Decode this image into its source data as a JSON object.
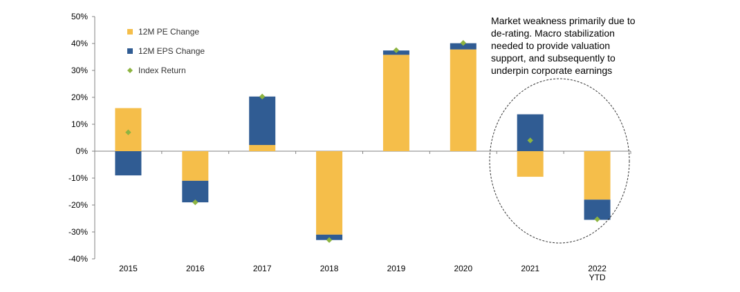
{
  "chart_data": {
    "type": "bar",
    "stacked": true,
    "categories": [
      "2015",
      "2016",
      "2017",
      "2018",
      "2019",
      "2020",
      "2021",
      "2022\nYTD"
    ],
    "series": [
      {
        "name": "12M PE Change",
        "kind": "bar",
        "color": "#F5BE4A",
        "values": [
          16.0,
          -11.0,
          2.3,
          -31.0,
          35.8,
          37.8,
          -9.5,
          -18.0
        ]
      },
      {
        "name": "12M EPS Change",
        "kind": "bar",
        "color": "#305C93",
        "values": [
          -9.0,
          -8.0,
          18.0,
          -2.0,
          1.6,
          2.3,
          13.7,
          -7.5
        ]
      },
      {
        "name": "Index Return",
        "kind": "marker",
        "marker": "diamond",
        "color": "#8DB441",
        "values": [
          7.0,
          -19.0,
          20.3,
          -33.0,
          37.5,
          40.2,
          4.0,
          -25.3
        ]
      }
    ],
    "title": "",
    "xlabel": "",
    "ylabel": "",
    "ylim": [
      -40,
      50
    ],
    "yticks": [
      -40,
      -30,
      -20,
      -10,
      0,
      10,
      20,
      30,
      40,
      50
    ],
    "ytick_format": "percent",
    "grid": false,
    "legend_position": "top-left",
    "annotation": {
      "text": "Market weakness primarily due to de-rating. Macro stabilization needed to provide valuation support, and subsequently to underpin corporate earnings",
      "highlight": "dashed ellipse around 2021 and 2022 YTD"
    }
  }
}
